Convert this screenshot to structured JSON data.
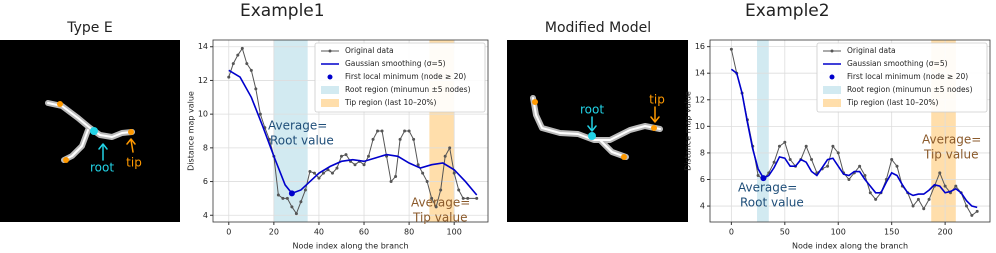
{
  "panels": [
    {
      "title": "Type E",
      "labels": [
        "root",
        "tip"
      ]
    },
    {
      "title": "Modified Model",
      "labels": [
        "root",
        "tip"
      ]
    }
  ],
  "chart_data": [
    {
      "type": "line",
      "title": "Example1",
      "xlabel": "Node index along the branch",
      "ylabel": "Distance map value",
      "xlim": [
        -7,
        115
      ],
      "ylim": [
        3.6,
        14.4
      ],
      "xticks": [
        0,
        20,
        40,
        60,
        80,
        100
      ],
      "yticks": [
        4,
        6,
        8,
        10,
        12,
        14
      ],
      "grid": true,
      "legend": "upper right",
      "series": [
        {
          "name": "Original data",
          "color": "#555555",
          "markers": true,
          "x": [
            0,
            2,
            4,
            6,
            8,
            10,
            12,
            14,
            16,
            18,
            20,
            22,
            24,
            26,
            28,
            30,
            32,
            34,
            36,
            38,
            40,
            42,
            44,
            46,
            48,
            50,
            52,
            54,
            56,
            58,
            60,
            62,
            64,
            66,
            68,
            70,
            72,
            74,
            76,
            78,
            80,
            82,
            84,
            86,
            88,
            90,
            92,
            94,
            96,
            98,
            100,
            102,
            104,
            106,
            110
          ],
          "values": [
            12.2,
            13,
            13.5,
            13.9,
            13,
            12.6,
            11.5,
            10,
            9.2,
            8.5,
            7.5,
            5.2,
            5,
            5,
            4.5,
            4.1,
            4.8,
            5.5,
            6.6,
            6.5,
            6.2,
            6.5,
            6.7,
            6.5,
            6.8,
            7.5,
            7.6,
            7.2,
            7,
            7.2,
            7,
            7.5,
            8.5,
            9,
            9,
            7.5,
            6,
            6.3,
            8.5,
            9,
            9,
            8.5,
            7,
            6.5,
            6,
            5,
            4.5,
            5.5,
            7.5,
            8,
            6.5,
            5.5,
            5,
            5,
            5
          ]
        },
        {
          "name": "Gaussian smoothing (σ=5)",
          "color": "#0000cc",
          "markers": false,
          "x": [
            0,
            5,
            10,
            15,
            20,
            25,
            28,
            32,
            36,
            40,
            45,
            50,
            55,
            60,
            65,
            70,
            75,
            80,
            85,
            90,
            95,
            100,
            105,
            110
          ],
          "values": [
            12.6,
            12.2,
            11,
            9.3,
            7.5,
            5.8,
            5.3,
            5.5,
            6,
            6.5,
            6.9,
            7.2,
            7.3,
            7.2,
            7.4,
            7.6,
            7.5,
            7.1,
            6.8,
            7,
            7.1,
            6.7,
            6,
            5.2
          ]
        }
      ],
      "points": {
        "name": "First local minimum (node ≥ 20)",
        "color": "#0000cc",
        "x": [
          28
        ],
        "values": [
          5.3
        ]
      },
      "regions": [
        {
          "name": "Root region (minumun ±5 nodes)",
          "color": "#add8e6",
          "range": [
            20,
            35
          ]
        },
        {
          "name": "Tip region (last 10–20%)",
          "color": "#ffc266",
          "range": [
            89,
            100
          ]
        }
      ],
      "annotations": [
        {
          "lines": [
            "Average=",
            "Root value"
          ],
          "color": "#1f4e79"
        },
        {
          "lines": [
            "Average=",
            "Tip value"
          ],
          "color": "#8b5a2b"
        }
      ]
    },
    {
      "type": "line",
      "title": "Example2",
      "xlabel": "Node index along the branch",
      "ylabel": "Distance map value",
      "xlim": [
        -20,
        242
      ],
      "ylim": [
        2.8,
        16.5
      ],
      "xticks": [
        0,
        50,
        100,
        150,
        200
      ],
      "yticks": [
        4,
        6,
        8,
        10,
        12,
        14,
        16
      ],
      "grid": true,
      "legend": "upper right",
      "series": [
        {
          "name": "Original data",
          "color": "#555555",
          "markers": true,
          "x": [
            0,
            5,
            10,
            15,
            20,
            25,
            30,
            35,
            40,
            45,
            50,
            55,
            60,
            65,
            70,
            75,
            80,
            85,
            90,
            95,
            100,
            105,
            110,
            115,
            120,
            125,
            130,
            135,
            140,
            145,
            150,
            155,
            160,
            165,
            170,
            175,
            180,
            185,
            190,
            195,
            200,
            205,
            210,
            215,
            220,
            225,
            230
          ],
          "values": [
            15.8,
            14,
            12.5,
            10.5,
            8.5,
            6.3,
            6,
            6.5,
            7.3,
            8.5,
            8.8,
            7.5,
            7,
            7.5,
            8.5,
            7.5,
            6.5,
            6.8,
            7,
            8.5,
            8,
            6.5,
            6,
            6.5,
            7,
            6.3,
            5,
            4.5,
            5,
            6,
            7.5,
            7,
            5.5,
            5,
            4,
            4.5,
            3.8,
            4.5,
            5.5,
            6.5,
            5.5,
            5,
            5.5,
            5,
            4,
            3.3,
            3.6
          ]
        },
        {
          "name": "Gaussian smoothing (σ=5)",
          "color": "#0000cc",
          "markers": false,
          "x": [
            0,
            5,
            10,
            15,
            20,
            25,
            30,
            35,
            40,
            45,
            50,
            55,
            60,
            65,
            70,
            75,
            80,
            85,
            90,
            95,
            100,
            105,
            110,
            115,
            120,
            125,
            130,
            135,
            140,
            145,
            150,
            155,
            160,
            165,
            170,
            175,
            180,
            185,
            190,
            195,
            200,
            205,
            210,
            215,
            220,
            225,
            230
          ],
          "values": [
            14.3,
            14,
            12.5,
            10.3,
            8.3,
            6.8,
            6.1,
            6.3,
            6.9,
            7.7,
            7.6,
            7,
            7,
            7.5,
            7.3,
            6.6,
            6.3,
            6.9,
            7.5,
            7.6,
            7,
            6.4,
            6.3,
            6.6,
            6.6,
            6,
            5.5,
            5,
            5,
            5.8,
            6.5,
            6.3,
            5.6,
            5,
            4.8,
            4.9,
            4.9,
            5.2,
            5.6,
            5.5,
            5,
            5.1,
            5.3,
            5,
            4.4,
            4,
            3.9
          ]
        }
      ],
      "points": {
        "name": "First local minimum (node ≥ 20)",
        "color": "#0000cc",
        "x": [
          30
        ],
        "values": [
          6.1
        ]
      },
      "regions": [
        {
          "name": "Root region (minumun ±5 nodes)",
          "color": "#add8e6",
          "range": [
            24,
            35
          ]
        },
        {
          "name": "Tip region (last 10–20%)",
          "color": "#ffc266",
          "range": [
            187,
            210
          ]
        }
      ],
      "annotations": [
        {
          "lines": [
            "Average=",
            "Root value"
          ],
          "color": "#1f4e79"
        },
        {
          "lines": [
            "Average=",
            "Tip value"
          ],
          "color": "#8b5a2b"
        }
      ]
    }
  ]
}
